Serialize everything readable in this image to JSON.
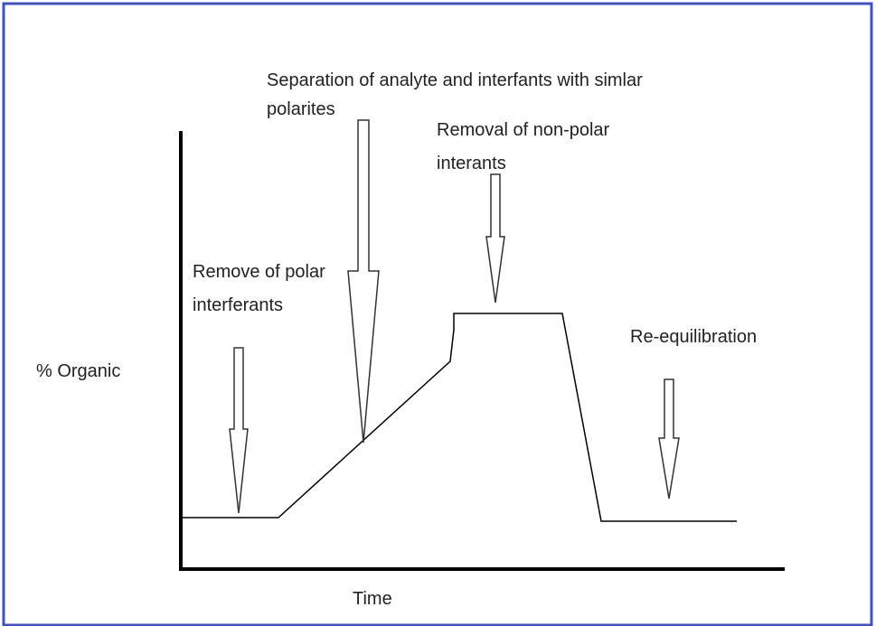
{
  "axes": {
    "y_label": "% Organic",
    "x_label": "Time"
  },
  "annotations": [
    {
      "lines": [
        "Remove of polar",
        "interferants"
      ]
    },
    {
      "lines": [
        "Separation of analyte and interfants with simlar",
        "polarites"
      ]
    },
    {
      "lines": [
        "Removal of non-polar",
        "interants"
      ]
    },
    {
      "lines": [
        "Re-equilibration"
      ]
    }
  ]
}
